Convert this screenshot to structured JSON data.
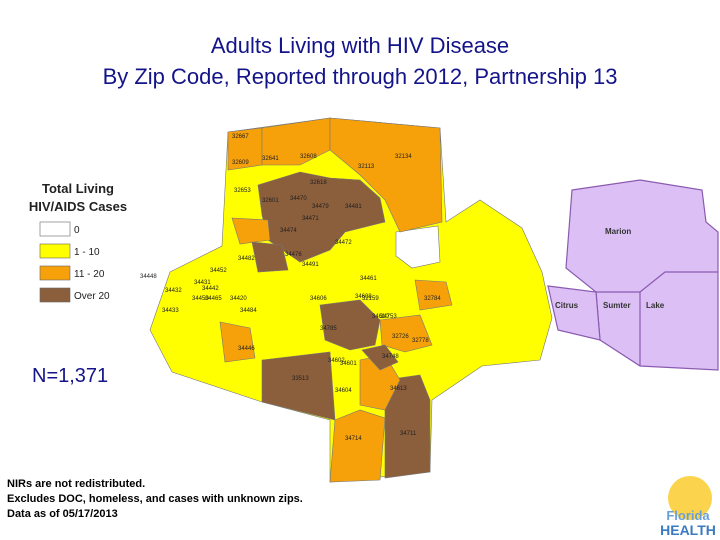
{
  "header": {
    "title_lines": [
      "Adults Living with HIV Disease",
      "By Zip Code, Reported through 2012, Partnership 13"
    ]
  },
  "legend": {
    "title_lines": [
      "Total Living",
      "HIV/AIDS Cases"
    ],
    "entries": [
      {
        "label": "0",
        "color": "#ffffff"
      },
      {
        "label": "1 - 10",
        "color": "#ffff00"
      },
      {
        "label": "11 - 20",
        "color": "#f7a10a"
      },
      {
        "label": "Over 20",
        "color": "#8b5e3c"
      }
    ]
  },
  "total": "N=1,371",
  "notes": [
    "NIRs are not redistributed.",
    "Excludes DOC, homeless, and cases with unknown zips.",
    "Data as of 05/17/2013"
  ],
  "counties": [
    "Marion",
    "Citrus",
    "Sumter",
    "Lake"
  ],
  "zips": [
    "32667",
    "32609",
    "32641",
    "32653",
    "32601",
    "32608",
    "32618",
    "34470",
    "34471",
    "34472",
    "34474",
    "34476",
    "34479",
    "34481",
    "34482",
    "32113",
    "32134",
    "34491",
    "34420",
    "34431",
    "34432",
    "34433",
    "34442",
    "34446",
    "34448",
    "34450",
    "34452",
    "34461",
    "34465",
    "34484",
    "34785",
    "33513",
    "34601",
    "34602",
    "34604",
    "34606",
    "34608",
    "34610",
    "34613",
    "32159",
    "32784",
    "32726",
    "32778",
    "34753",
    "34748",
    "34711",
    "34714"
  ],
  "logo": [
    "Florida",
    "HEALTH"
  ]
}
